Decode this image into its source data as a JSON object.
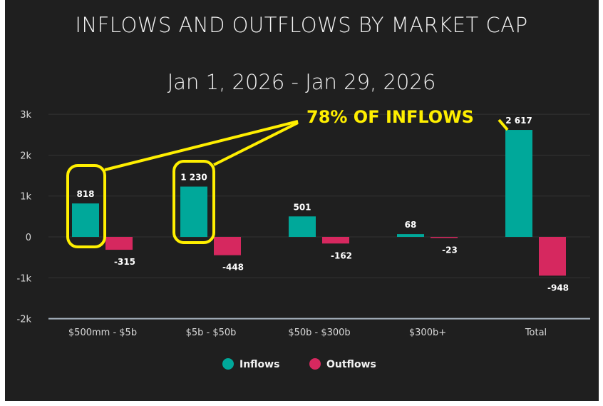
{
  "chart_data": {
    "type": "bar",
    "title": "INFLOWS AND OUTFLOWS BY MARKET CAP",
    "subtitle": "Jan 1, 2026 - Jan 29, 2026",
    "categories": [
      "$500mm - $5b",
      "$5b - $50b",
      "$50b - $300b",
      "$300b+",
      "Total"
    ],
    "series": [
      {
        "name": "Inflows",
        "color": "#00a89a",
        "values": [
          818,
          1230,
          501,
          68,
          2617
        ],
        "labels": [
          "818",
          "1 230",
          "501",
          "68",
          "2 617"
        ]
      },
      {
        "name": "Outflows",
        "color": "#d6285f",
        "values": [
          -315,
          -448,
          -162,
          -23,
          -948
        ],
        "labels": [
          "-315",
          "-448",
          "-162",
          "-23",
          "-948"
        ]
      }
    ],
    "ylim": [
      -2000,
      3000
    ],
    "yticks": [
      3000,
      2000,
      1000,
      0,
      -1000,
      -2000
    ],
    "ytick_labels": [
      "3k",
      "2k",
      "1k",
      "0",
      "-1k",
      "-2k"
    ],
    "grid": true,
    "legend": "bottom",
    "annotation": {
      "text": "78% OF INFLOWS",
      "color": "#ffef00",
      "highlighted_categories": [
        "$500mm - $5b",
        "$5b - $50b"
      ]
    }
  }
}
